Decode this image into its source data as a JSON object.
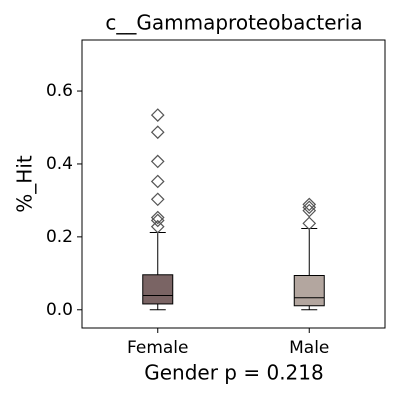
{
  "chart_data": {
    "type": "box",
    "title": "c__Gammaproteobacteria",
    "ylabel": "%_Hit",
    "xlabel": "Gender p = 0.218",
    "ylim": [
      -0.05,
      0.74
    ],
    "yticks": [
      {
        "value": 0.0,
        "label": "0.0"
      },
      0.2,
      0.4,
      0.6
    ],
    "boxes": [
      {
        "name": "Female",
        "color": "#7a6464",
        "whislo": 0.0,
        "q1": 0.016,
        "median": 0.039,
        "q3": 0.096,
        "whishi": 0.212,
        "fliers": [
          0.534,
          0.487,
          0.407,
          0.352,
          0.303,
          0.253,
          0.245,
          0.228
        ]
      },
      {
        "name": "Male",
        "color": "#b3a69f",
        "whislo": 0.0,
        "q1": 0.011,
        "median": 0.033,
        "q3": 0.094,
        "whishi": 0.223,
        "fliers": [
          0.289,
          0.281,
          0.272,
          0.237
        ]
      }
    ]
  }
}
